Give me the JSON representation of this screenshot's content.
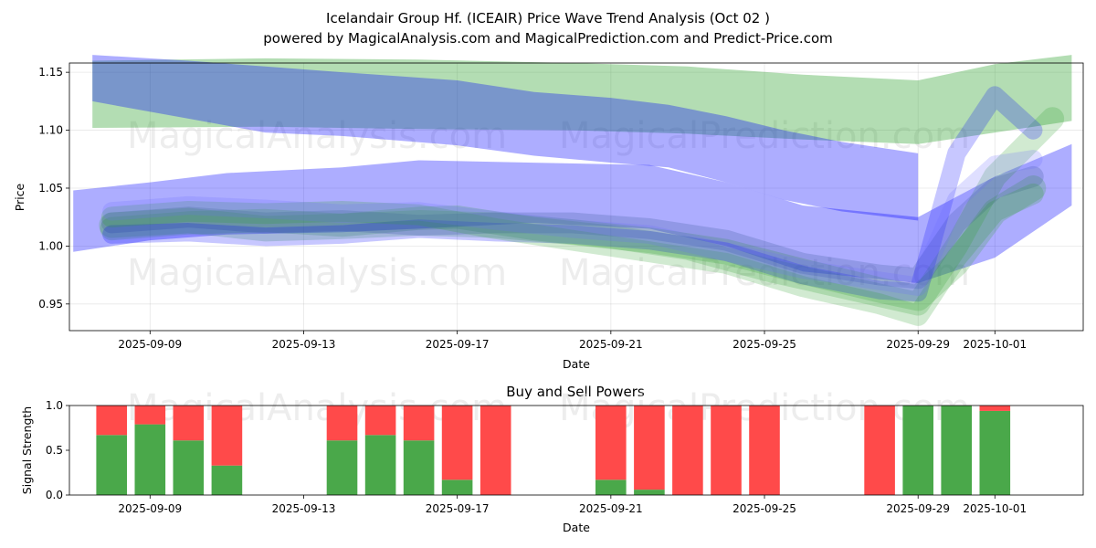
{
  "chart_data": [
    {
      "type": "area",
      "title": "Icelandair Group Hf. (ICEAIR) Price Wave Trend Analysis (Oct 02 )",
      "subtitle": "powered by MagicalAnalysis.com and MagicalPrediction.com and Predict-Price.com",
      "xlabel": "Date",
      "ylabel": "Price",
      "ylim": [
        0.927,
        1.158
      ],
      "xlim": [
        "2025-09-06.9",
        "2025-10-03.3"
      ],
      "x_ticks": [
        "2025-09-09",
        "2025-09-13",
        "2025-09-17",
        "2025-09-21",
        "2025-09-25",
        "2025-09-29",
        "2025-10-01"
      ],
      "y_ticks": [
        0.95,
        1.0,
        1.05,
        1.1,
        1.15
      ],
      "grid": true,
      "watermarks": [
        "MagicalAnalysis.com",
        "MagicalPrediction.com",
        "MagicalAnalysis.com",
        "MagicalPrediction.com"
      ],
      "series": [
        {
          "name": "green upper band",
          "color": "#2ca02c",
          "x": [
            7.5,
            12,
            16,
            20,
            23,
            26,
            29,
            31,
            33
          ],
          "lower": [
            1.102,
            1.103,
            1.101,
            1.1,
            1.097,
            1.092,
            1.088,
            1.098,
            1.108
          ],
          "upper": [
            1.16,
            1.162,
            1.161,
            1.158,
            1.155,
            1.148,
            1.143,
            1.157,
            1.165
          ]
        },
        {
          "name": "blue upper band",
          "color": "#0000ff",
          "x": [
            7.5,
            10,
            12,
            14,
            17,
            19,
            21,
            22.5,
            24,
            25.5,
            27,
            29
          ],
          "lower": [
            1.125,
            1.11,
            1.098,
            1.095,
            1.087,
            1.078,
            1.072,
            1.068,
            1.055,
            1.04,
            1.03,
            1.022
          ],
          "upper": [
            1.165,
            1.16,
            1.155,
            1.15,
            1.143,
            1.133,
            1.128,
            1.122,
            1.112,
            1.1,
            1.09,
            1.08
          ]
        },
        {
          "name": "blue wide band",
          "color": "#0000ff",
          "x": [
            7.0,
            9,
            11,
            14,
            16,
            19,
            22,
            24,
            26,
            29,
            31,
            33
          ],
          "lower": [
            0.995,
            1.005,
            1.01,
            1.012,
            1.015,
            1.02,
            1.015,
            1.0,
            0.978,
            0.968,
            0.99,
            1.035
          ],
          "upper": [
            1.048,
            1.055,
            1.063,
            1.068,
            1.074,
            1.072,
            1.07,
            1.055,
            1.035,
            1.025,
            1.06,
            1.088
          ]
        }
      ],
      "wave_lines": [
        {
          "color": "#2ca02c",
          "width": 0.022,
          "x": [
            8,
            10,
            12,
            14,
            16,
            18,
            20,
            22,
            24,
            26,
            28,
            29,
            30,
            31,
            32
          ],
          "y": [
            1.018,
            1.022,
            1.015,
            1.017,
            1.02,
            1.018,
            1.012,
            1.005,
            0.995,
            0.978,
            0.962,
            0.955,
            0.985,
            1.03,
            1.05
          ]
        },
        {
          "color": "#2ca02c",
          "width": 0.02,
          "x": [
            8,
            10,
            12,
            14,
            16,
            17,
            19,
            21,
            23,
            25,
            27,
            29,
            30,
            31,
            32.5
          ],
          "y": [
            1.015,
            1.02,
            1.022,
            1.018,
            1.024,
            1.025,
            1.015,
            1.008,
            0.998,
            0.98,
            0.965,
            0.95,
            1.0,
            1.06,
            1.11
          ]
        },
        {
          "color": "#2f4f8f",
          "width": 0.018,
          "x": [
            8,
            10,
            12,
            14,
            16,
            18,
            20,
            22,
            24,
            26,
            28,
            29,
            30,
            31,
            32
          ],
          "y": [
            1.02,
            1.025,
            1.02,
            1.022,
            1.018,
            1.02,
            1.02,
            1.015,
            1.005,
            0.985,
            0.975,
            0.972,
            1.02,
            1.05,
            1.06
          ]
        },
        {
          "color": "#0000ff",
          "width": 0.016,
          "x": [
            8,
            10,
            12,
            14,
            16,
            18,
            20,
            22,
            24,
            26,
            28,
            29,
            30,
            31,
            32
          ],
          "y": [
            1.01,
            1.012,
            1.008,
            1.01,
            1.015,
            1.012,
            1.01,
            1.005,
            0.995,
            0.975,
            0.962,
            0.96,
            1.08,
            1.13,
            1.1
          ]
        },
        {
          "color": "#2ca02c",
          "width": 0.018,
          "x": [
            8,
            10,
            12,
            14,
            16,
            18,
            20,
            22,
            24,
            26,
            28,
            29,
            30,
            31,
            32
          ],
          "y": [
            1.025,
            1.03,
            1.028,
            1.03,
            1.027,
            1.015,
            1.005,
            0.995,
            0.985,
            0.965,
            0.95,
            0.94,
            0.99,
            1.03,
            1.045
          ]
        },
        {
          "color": "#6c6cff",
          "width": 0.016,
          "x": [
            8,
            10,
            12,
            14,
            16,
            18,
            20,
            22,
            24,
            26,
            28,
            29,
            30,
            31,
            32
          ],
          "y": [
            1.03,
            1.035,
            1.032,
            1.028,
            1.03,
            1.022,
            1.015,
            1.01,
            0.995,
            0.98,
            0.97,
            0.965,
            1.04,
            1.07,
            1.075
          ]
        }
      ]
    },
    {
      "type": "bar",
      "title": "Buy and Sell Powers",
      "xlabel": "Date",
      "ylabel": "Signal Strength",
      "ylim": [
        0,
        1.0
      ],
      "y_ticks": [
        "0.0",
        "0.5",
        "1.0"
      ],
      "x_ticks": [
        "2025-09-09",
        "2025-09-13",
        "2025-09-17",
        "2025-09-21",
        "2025-09-25",
        "2025-09-29",
        "2025-10-01"
      ],
      "buy_color": "#4aa84a",
      "sell_color": "#ff4a4a",
      "bars": [
        {
          "date": "2025-09-08",
          "buy": 0.67
        },
        {
          "date": "2025-09-09",
          "buy": 0.79
        },
        {
          "date": "2025-09-10",
          "buy": 0.61
        },
        {
          "date": "2025-09-11",
          "buy": 0.33
        },
        {
          "date": "2025-09-14",
          "buy": 0.61
        },
        {
          "date": "2025-09-15",
          "buy": 0.67
        },
        {
          "date": "2025-09-16",
          "buy": 0.61
        },
        {
          "date": "2025-09-17",
          "buy": 0.17
        },
        {
          "date": "2025-09-18",
          "buy": 0.0
        },
        {
          "date": "2025-09-21",
          "buy": 0.17
        },
        {
          "date": "2025-09-22",
          "buy": 0.06
        },
        {
          "date": "2025-09-23",
          "buy": 0.0
        },
        {
          "date": "2025-09-24",
          "buy": 0.0
        },
        {
          "date": "2025-09-25",
          "buy": 0.0
        },
        {
          "date": "2025-09-28",
          "buy": 0.0
        },
        {
          "date": "2025-09-29",
          "buy": 1.0
        },
        {
          "date": "2025-09-30",
          "buy": 1.0
        },
        {
          "date": "2025-10-01",
          "buy": 0.94
        }
      ]
    }
  ]
}
